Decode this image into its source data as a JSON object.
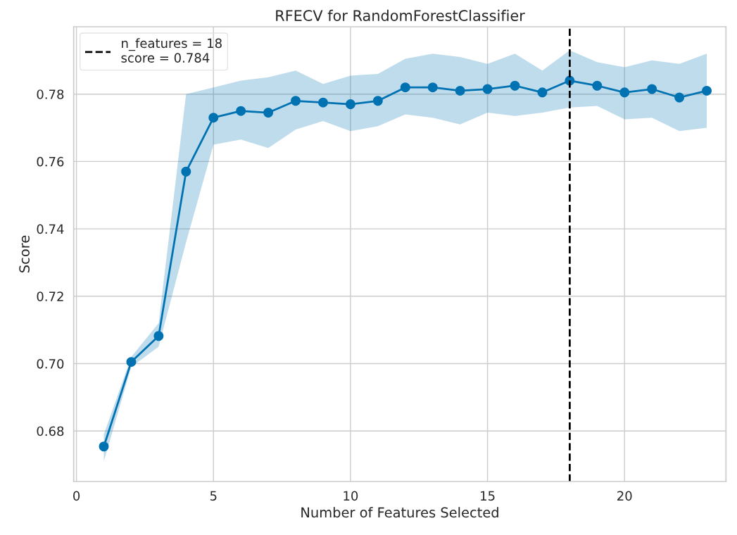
{
  "chart_data": {
    "type": "line",
    "title": "RFECV for RandomForestClassifier",
    "xlabel": "Number of Features Selected",
    "ylabel": "Score",
    "x": [
      1,
      2,
      3,
      4,
      5,
      6,
      7,
      8,
      9,
      10,
      11,
      12,
      13,
      14,
      15,
      16,
      17,
      18,
      19,
      20,
      21,
      22,
      23
    ],
    "series": [
      {
        "color": "#0072b2",
        "marker": "circle",
        "line_style": "solid",
        "values": [
          0.6754,
          0.7005,
          0.7082,
          0.757,
          0.773,
          0.775,
          0.7745,
          0.778,
          0.7775,
          0.777,
          0.778,
          0.782,
          0.782,
          0.781,
          0.7815,
          0.7825,
          0.7805,
          0.784,
          0.7825,
          0.7805,
          0.7815,
          0.779,
          0.781
        ],
        "lower": [
          0.671,
          0.699,
          0.705,
          0.736,
          0.765,
          0.7665,
          0.764,
          0.7695,
          0.772,
          0.769,
          0.7705,
          0.774,
          0.773,
          0.771,
          0.7745,
          0.7735,
          0.7745,
          0.776,
          0.7765,
          0.7725,
          0.773,
          0.769,
          0.77
        ],
        "upper": [
          0.679,
          0.702,
          0.712,
          0.78,
          0.782,
          0.784,
          0.785,
          0.787,
          0.783,
          0.7855,
          0.786,
          0.7905,
          0.792,
          0.791,
          0.789,
          0.792,
          0.787,
          0.793,
          0.7895,
          0.788,
          0.79,
          0.789,
          0.792
        ]
      }
    ],
    "ref_lines": [
      {
        "axis": "x",
        "value": 18,
        "label": "n_features = 18\nscore = 0.784",
        "color": "#000000",
        "line_style": "dashed"
      }
    ],
    "xlim": [
      -0.1,
      23.7
    ],
    "ylim": [
      0.665,
      0.8
    ],
    "xticks": [
      0,
      5,
      10,
      15,
      20
    ],
    "yticks": [
      0.68,
      {
        "value": 0.7,
        "label": "0.70"
      },
      0.72,
      0.74,
      0.76,
      0.78
    ],
    "grid": true,
    "legend": "top left"
  }
}
